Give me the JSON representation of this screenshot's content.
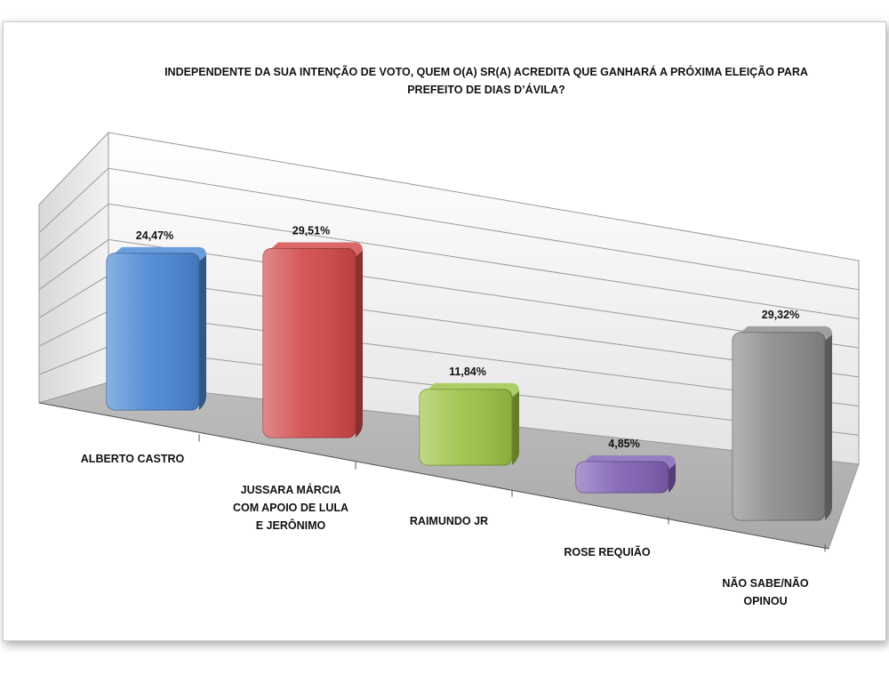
{
  "chart_data": {
    "type": "bar",
    "title_lines": [
      "INDEPENDENTE DA SUA INTENÇÃO DE VOTO, QUEM O(A) SR(A) ACREDITA QUE GANHARÁ A PRÓXIMA ELEIÇÃO PARA",
      "PREFEITO DE DIAS D’ÁVILA?"
    ],
    "categories": [
      [
        "ALBERTO CASTRO"
      ],
      [
        "JUSSARA MÁRCIA",
        "COM APOIO DE LULA",
        "E JERÔNIMO"
      ],
      [
        "RAIMUNDO JR"
      ],
      [
        "ROSE REQUIÃO"
      ],
      [
        "NÃO SABE/NÃO",
        "OPINOU"
      ]
    ],
    "values": [
      24.47,
      29.51,
      11.84,
      4.85,
      29.32
    ],
    "value_labels": [
      "24,47%",
      "29,51%",
      "11,84%",
      "4,85%",
      "29,32%"
    ],
    "colors": [
      "#4a86d4",
      "#d14848",
      "#9bc244",
      "#8060b4",
      "#8a8a8a"
    ],
    "ylim": [
      0,
      35
    ],
    "grid": true,
    "legend": "none",
    "style": "3d-bar"
  }
}
